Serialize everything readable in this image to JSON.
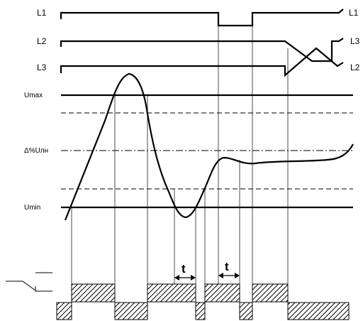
{
  "phases": {
    "left": [
      "L1",
      "L2",
      "L3"
    ],
    "right": [
      "L1",
      "L3",
      "L2"
    ]
  },
  "levels": {
    "umax": "Umax",
    "nominal": "Δ%Uлн",
    "umin": "Umin"
  },
  "delay_label": "t"
}
